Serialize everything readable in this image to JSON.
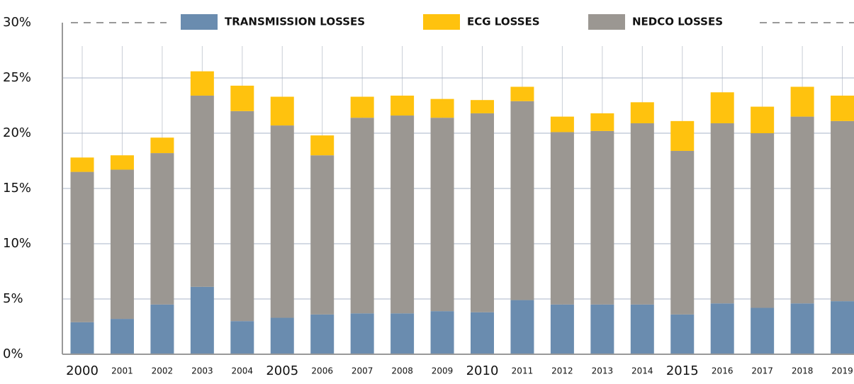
{
  "chart_data": {
    "type": "stacked_bar",
    "categories": [
      "2000",
      "2001",
      "2002",
      "2003",
      "2004",
      "2005",
      "2006",
      "2007",
      "2008",
      "2009",
      "2010",
      "2011",
      "2012",
      "2013",
      "2014",
      "2015",
      "2016",
      "2017",
      "2018",
      "2019"
    ],
    "series": [
      {
        "name": "TRANSMISSION LOSSES",
        "color": "#6a8caf",
        "values": [
          2.9,
          3.2,
          4.5,
          6.1,
          3.0,
          3.3,
          3.6,
          3.7,
          3.7,
          3.9,
          3.8,
          4.9,
          4.5,
          4.5,
          4.5,
          3.6,
          4.6,
          4.2,
          4.6,
          4.8
        ]
      },
      {
        "name": "NEDCO LOSSES",
        "color": "#9b9792",
        "values": [
          13.6,
          13.5,
          13.7,
          17.3,
          19.0,
          17.4,
          14.4,
          17.7,
          17.9,
          17.5,
          18.0,
          18.0,
          15.6,
          15.7,
          16.4,
          14.8,
          16.3,
          15.8,
          16.9,
          16.3
        ]
      },
      {
        "name": "ECG LOSSES",
        "color": "#ffc20e",
        "values": [
          1.3,
          1.3,
          1.4,
          2.2,
          2.3,
          2.6,
          1.8,
          1.9,
          1.8,
          1.7,
          1.2,
          1.3,
          1.4,
          1.6,
          1.9,
          2.7,
          2.8,
          2.4,
          2.7,
          2.3
        ]
      }
    ],
    "legend_order": [
      "TRANSMISSION LOSSES",
      "ECG LOSSES",
      "NEDCO LOSSES"
    ],
    "ylim": [
      0,
      30
    ],
    "yticks": [
      {
        "value": 0,
        "label": "0%"
      },
      {
        "value": 5,
        "label": "5%"
      },
      {
        "value": 10,
        "label": "10%"
      },
      {
        "value": 15,
        "label": "15%"
      },
      {
        "value": 20,
        "label": "20%"
      },
      {
        "value": 25,
        "label": "25%"
      },
      {
        "value": 30,
        "label": "30%"
      }
    ],
    "grid": true,
    "legend": "top"
  }
}
